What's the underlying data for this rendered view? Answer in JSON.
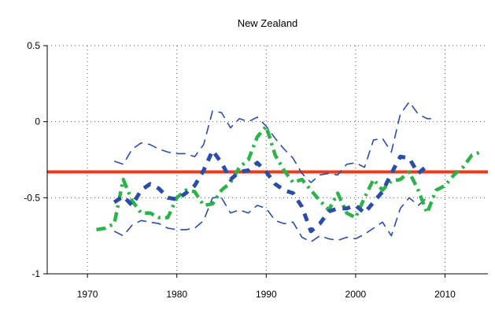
{
  "chart_data": {
    "type": "line",
    "title": "New Zealand",
    "xlabel": "",
    "ylabel": "",
    "xlim": [
      1965.5,
      2014.8
    ],
    "ylim": [
      -1,
      0.5
    ],
    "xticks": [
      1970,
      1980,
      1990,
      2000,
      2010
    ],
    "yticks": [
      0.5,
      0,
      -0.5,
      -1
    ],
    "ytick_labels": [
      "0.5",
      "0",
      "-0.5",
      "-1"
    ],
    "grid": "dotted",
    "legend": "none",
    "colors": {
      "blue": "#2a4ea8",
      "green": "#2db34a",
      "red": "#ee3a1c"
    },
    "series": [
      {
        "style": "blue-dashed-thick",
        "x": [
          1973,
          1974,
          1975,
          1976,
          1977,
          1978,
          1979,
          1980,
          1981,
          1982,
          1983,
          1984,
          1985,
          1986,
          1987,
          1988,
          1989,
          1990,
          1991,
          1992,
          1993,
          1994,
          1995,
          1996,
          1997,
          1998,
          1999,
          2000,
          2001,
          2002,
          2003,
          2004,
          2005,
          2006,
          2007,
          2008
        ],
        "y": [
          -0.53,
          -0.49,
          -0.55,
          -0.45,
          -0.41,
          -0.44,
          -0.5,
          -0.51,
          -0.47,
          -0.42,
          -0.32,
          -0.19,
          -0.27,
          -0.38,
          -0.33,
          -0.32,
          -0.27,
          -0.33,
          -0.41,
          -0.45,
          -0.47,
          -0.56,
          -0.72,
          -0.67,
          -0.59,
          -0.57,
          -0.57,
          -0.55,
          -0.6,
          -0.53,
          -0.46,
          -0.34,
          -0.23,
          -0.24,
          -0.34,
          -0.29
        ]
      },
      {
        "style": "blue-dashed-upper",
        "x": [
          1973,
          1974,
          1975,
          1976,
          1977,
          1978,
          1979,
          1980,
          1981,
          1982,
          1983,
          1984,
          1985,
          1986,
          1987,
          1988,
          1989,
          1990,
          1991,
          1992,
          1993,
          1994,
          1995,
          1996,
          1997,
          1998,
          1999,
          2000,
          2001,
          2002,
          2003,
          2004,
          2005,
          2006,
          2007,
          2008,
          2009
        ],
        "y": [
          -0.26,
          -0.28,
          -0.18,
          -0.14,
          -0.15,
          -0.18,
          -0.2,
          -0.21,
          -0.21,
          -0.23,
          -0.15,
          0.07,
          0.06,
          -0.04,
          0.02,
          0.0,
          0.03,
          -0.03,
          -0.11,
          -0.18,
          -0.24,
          -0.34,
          -0.4,
          -0.35,
          -0.34,
          -0.35,
          -0.28,
          -0.27,
          -0.3,
          -0.12,
          -0.11,
          -0.2,
          0.05,
          0.13,
          0.05,
          0.02,
          0.02
        ]
      },
      {
        "style": "blue-dashed-lower",
        "x": [
          1973,
          1974,
          1975,
          1976,
          1977,
          1978,
          1979,
          1980,
          1981,
          1982,
          1983,
          1984,
          1985,
          1986,
          1987,
          1988,
          1989,
          1990,
          1991,
          1992,
          1993,
          1994,
          1995,
          1996,
          1997,
          1998,
          1999,
          2000,
          2001,
          2002,
          2003,
          2004,
          2005,
          2006,
          2007,
          2008
        ],
        "y": [
          -0.72,
          -0.75,
          -0.68,
          -0.65,
          -0.66,
          -0.67,
          -0.7,
          -0.71,
          -0.71,
          -0.7,
          -0.65,
          -0.5,
          -0.5,
          -0.6,
          -0.58,
          -0.6,
          -0.55,
          -0.57,
          -0.65,
          -0.67,
          -0.66,
          -0.76,
          -0.79,
          -0.75,
          -0.77,
          -0.78,
          -0.76,
          -0.77,
          -0.74,
          -0.7,
          -0.66,
          -0.75,
          -0.57,
          -0.5,
          -0.55,
          -0.5
        ]
      },
      {
        "style": "green-dashdot",
        "x": [
          1971,
          1972,
          1973,
          1974,
          1975,
          1976,
          1977,
          1978,
          1979,
          1980,
          1981,
          1982,
          1983,
          1984,
          1985,
          1986,
          1987,
          1988,
          1989,
          1990,
          1991,
          1992,
          1993,
          1994,
          1995,
          1996,
          1997,
          1998,
          1999,
          2000,
          2001,
          2002,
          2003,
          2004,
          2005,
          2006,
          2007,
          2008,
          2009,
          2010,
          2011,
          2012,
          2013,
          2014
        ],
        "y": [
          -0.71,
          -0.7,
          -0.67,
          -0.38,
          -0.52,
          -0.6,
          -0.6,
          -0.63,
          -0.63,
          -0.5,
          -0.45,
          -0.46,
          -0.55,
          -0.54,
          -0.45,
          -0.4,
          -0.3,
          -0.25,
          -0.1,
          -0.03,
          -0.22,
          -0.32,
          -0.4,
          -0.38,
          -0.45,
          -0.52,
          -0.58,
          -0.47,
          -0.6,
          -0.63,
          -0.5,
          -0.38,
          -0.45,
          -0.39,
          -0.38,
          -0.33,
          -0.45,
          -0.6,
          -0.45,
          -0.42,
          -0.35,
          -0.3,
          -0.22,
          -0.2
        ]
      },
      {
        "style": "red-horizontal",
        "x": [
          1965.5,
          2014.8
        ],
        "y": [
          -0.33,
          -0.33
        ]
      }
    ]
  }
}
